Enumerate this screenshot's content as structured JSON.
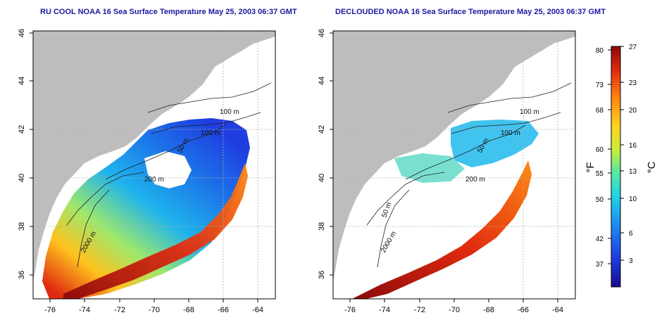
{
  "panels": [
    {
      "title": "RU COOL NOAA 16 Sea Surface Temperature May 25, 2003 06:37 GMT",
      "contour_labels": [
        "100 m",
        "100 m",
        "50 m",
        "200 m",
        "2000 m"
      ]
    },
    {
      "title": "DECLOUDED NOAA 16 Sea Surface Temperature May 25, 2003 06:37 GMT",
      "contour_labels": [
        "100 m",
        "100 m",
        "50 m",
        "200 m",
        "50 m",
        "2000 m"
      ]
    }
  ],
  "axes": {
    "lon_ticks": [
      "-76",
      "-74",
      "-72",
      "-70",
      "-68",
      "-66",
      "-64"
    ],
    "lat_ticks": [
      "36",
      "38",
      "40",
      "42",
      "44",
      "46"
    ],
    "lon_range": [
      -77,
      -63
    ],
    "lat_range": [
      35,
      46
    ]
  },
  "colorbar": {
    "fahrenheit_label": "°F",
    "celsius_label": "°C",
    "fahrenheit_ticks": [
      "80",
      "73",
      "68",
      "60",
      "55",
      "50",
      "42",
      "37"
    ],
    "celsius_ticks": [
      "27",
      "23",
      "20",
      "16",
      "13",
      "10",
      "6",
      "3"
    ],
    "colors": [
      "#1a0a8c",
      "#1f3de0",
      "#1c8ef0",
      "#20d6e6",
      "#5ce8a0",
      "#c8ee3c",
      "#ffd21e",
      "#ff8a14",
      "#e02a10",
      "#8c0a0a"
    ]
  },
  "colors": {
    "land": "#bdbdbd",
    "contour": "#202020",
    "grid": "#b0b0b0"
  }
}
